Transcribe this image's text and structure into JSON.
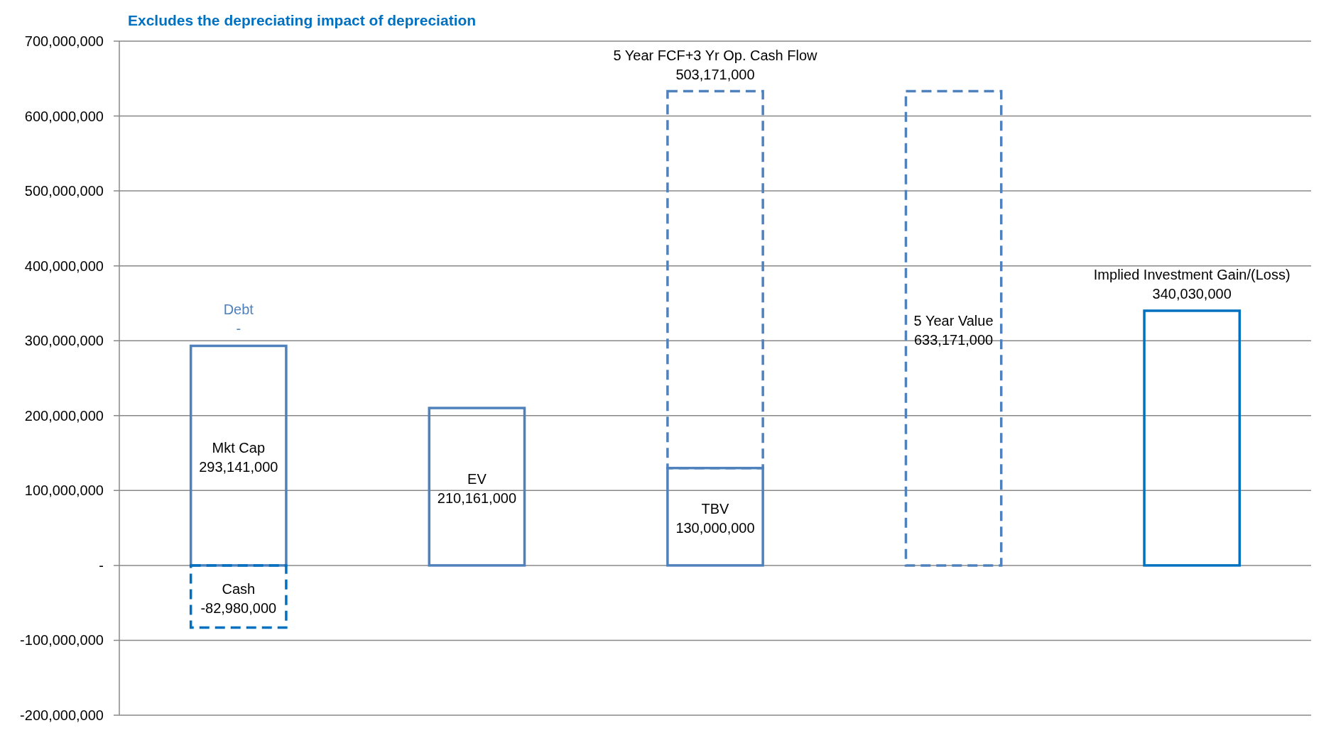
{
  "chart_data": {
    "type": "bar",
    "title": "Excludes the depreciating impact of depreciation",
    "stacked": true,
    "categories": [
      null,
      null,
      null,
      null,
      null
    ],
    "series": [
      {
        "name": "Mkt Cap",
        "color": "#4f81bd",
        "line_style": "solid",
        "values": [
          293141000,
          null,
          null,
          null,
          null
        ],
        "value_labels": [
          "293,141,000",
          null,
          null,
          null,
          null
        ]
      },
      {
        "name": "Cash",
        "color": "#0070c0",
        "line_style": "dashed",
        "values": [
          -82980000,
          null,
          null,
          null,
          null
        ],
        "value_labels": [
          "-82,980,000",
          null,
          null,
          null,
          null
        ]
      },
      {
        "name": "Debt",
        "color": "#4f81bd",
        "line_style": "solid",
        "values": [
          0,
          null,
          null,
          null,
          null
        ],
        "value_labels": [
          "-",
          null,
          null,
          null,
          null
        ]
      },
      {
        "name": "EV",
        "color": "#4f81bd",
        "line_style": "solid",
        "values": [
          null,
          210161000,
          null,
          null,
          null
        ],
        "value_labels": [
          null,
          "210,161,000",
          null,
          null,
          null
        ]
      },
      {
        "name": "TBV",
        "color": "#4f81bd",
        "line_style": "solid",
        "values": [
          null,
          null,
          130000000,
          null,
          null
        ],
        "value_labels": [
          null,
          null,
          "130,000,000",
          null,
          null
        ]
      },
      {
        "name": "5 Year FCF+3 Yr Op. Cash Flow",
        "color": "#4f81bd",
        "line_style": "dashed",
        "values": [
          null,
          null,
          503171000,
          null,
          null
        ],
        "value_labels": [
          null,
          null,
          "503,171,000",
          null,
          null
        ]
      },
      {
        "name": "5 Year Value",
        "color": "#4f81bd",
        "line_style": "dashed",
        "values": [
          null,
          null,
          null,
          633171000,
          null
        ],
        "value_labels": [
          null,
          null,
          null,
          "633,171,000",
          null
        ]
      },
      {
        "name": "Implied Investment Gain/(Loss)",
        "color": "#0070c0",
        "line_style": "solid",
        "values": [
          null,
          null,
          null,
          null,
          340030000
        ],
        "value_labels": [
          null,
          null,
          null,
          null,
          "340,030,000"
        ]
      }
    ],
    "ylim": [
      -200000000,
      700000000
    ],
    "yticks": [
      {
        "value": -200000000,
        "label": "-200,000,000"
      },
      {
        "value": -100000000,
        "label": "-100,000,000"
      },
      {
        "value": 0,
        "label": "-"
      },
      {
        "value": 100000000,
        "label": "100,000,000"
      },
      {
        "value": 200000000,
        "label": "200,000,000"
      },
      {
        "value": 300000000,
        "label": "300,000,000"
      },
      {
        "value": 400000000,
        "label": "400,000,000"
      },
      {
        "value": 500000000,
        "label": "500,000,000"
      },
      {
        "value": 600000000,
        "label": "600,000,000"
      },
      {
        "value": 700000000,
        "label": "700,000,000"
      }
    ],
    "grid": "y",
    "legend": false
  }
}
